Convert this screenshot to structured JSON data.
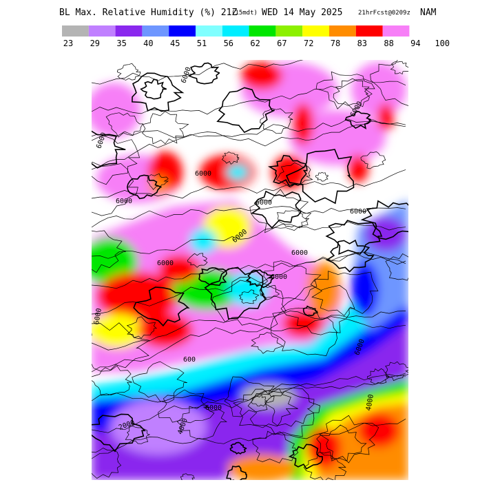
{
  "header": {
    "title": "BL Max. Relative Humidity (%) 21Z",
    "valid_local": "(15mdt)",
    "date": "WED 14 May 2025",
    "forecast": "21hrFcst@0209z",
    "model": "NAM"
  },
  "legend": {
    "colors": [
      "#b4b4b4",
      "#c080ff",
      "#8a28ee",
      "#6e96ff",
      "#0000ff",
      "#80ffff",
      "#00eeff",
      "#00e600",
      "#8cf000",
      "#ffff00",
      "#ff8c00",
      "#ff0000",
      "#f77ff7"
    ],
    "ticks": [
      "23",
      "29",
      "35",
      "40",
      "45",
      "51",
      "56",
      "62",
      "67",
      "72",
      "78",
      "83",
      "88",
      "94",
      "100"
    ]
  },
  "map": {
    "contour_labels": [
      "6000",
      "6000",
      "6000",
      "6000",
      "6000",
      "6000",
      "6000",
      "6000",
      "6000",
      "6000",
      "6000",
      "6000",
      "6000",
      "600",
      "4000",
      "4000",
      "2000",
      "6000"
    ]
  }
}
